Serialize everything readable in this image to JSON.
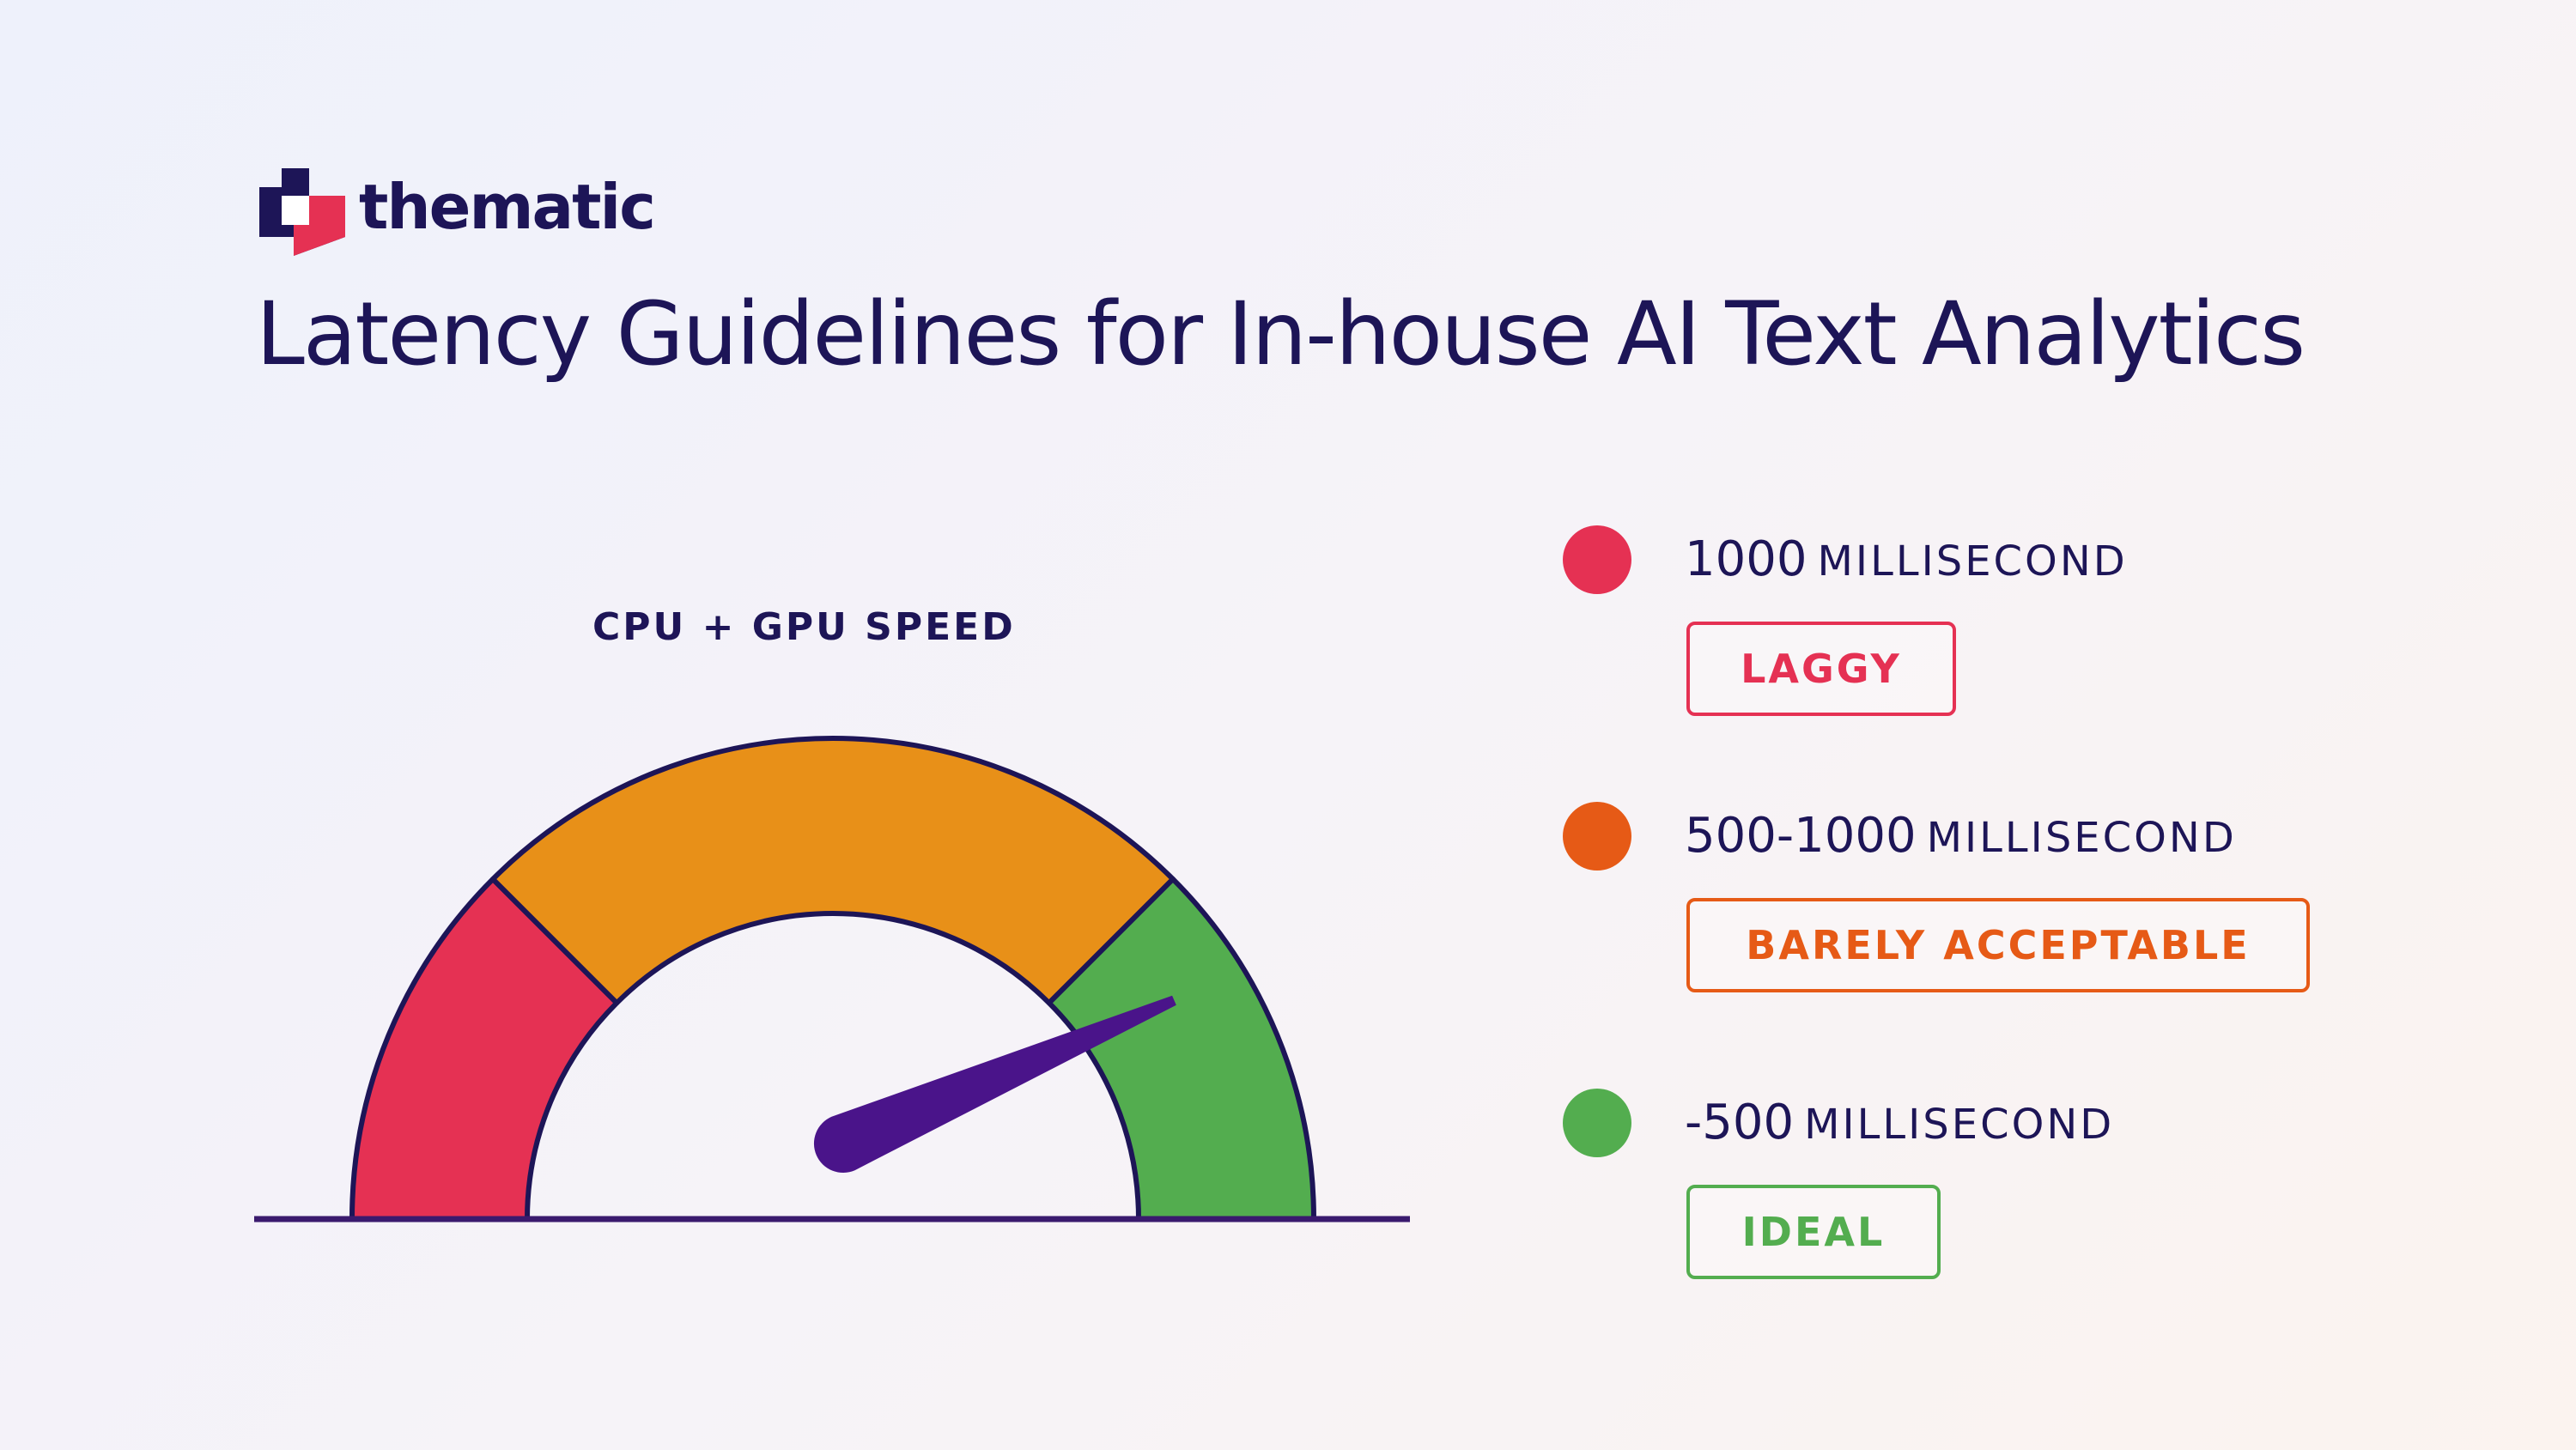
{
  "brand": {
    "name": "thematic"
  },
  "page": {
    "title": "Latency Guidelines for In-house AI Text Analytics"
  },
  "gauge": {
    "label": "CPU + GPU SPEED",
    "segments": [
      {
        "status": "LAGGY",
        "color": "#e53153",
        "fraction": 0.25
      },
      {
        "status": "BARELY ACCEPTABLE",
        "color": "#e89018",
        "fraction": 0.5
      },
      {
        "status": "IDEAL",
        "color": "#53ad4f",
        "fraction": 0.25
      }
    ],
    "needle_fraction": 0.87,
    "needle_color": "#4a148a",
    "outline_color": "#1d1557"
  },
  "legend": [
    {
      "number": "1000",
      "unit": "MILLISECOND",
      "status": "LAGGY",
      "color": "#e53153"
    },
    {
      "number": "500-1000",
      "unit": "MILLISECOND",
      "status": "BARELY ACCEPTABLE",
      "color": "#e65a16"
    },
    {
      "number": "-500",
      "unit": "MILLISECOND",
      "status": "IDEAL",
      "color": "#53ad4f"
    }
  ]
}
